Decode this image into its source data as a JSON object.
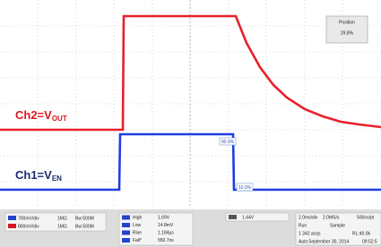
{
  "position_box": {
    "title": "Position",
    "value": "29.8%"
  },
  "traces": {
    "ch2": {
      "label": "Ch2=V",
      "subscript": "OUT"
    },
    "ch1": {
      "label": "Ch1=V",
      "subscript": "EN"
    }
  },
  "cursors": [
    "90.0%",
    "10.0%"
  ],
  "channels": [
    {
      "scale": "700mV/div",
      "impedance": "1MΩ",
      "bandwidth": "Bw:500M"
    },
    {
      "scale": "800mV/div",
      "impedance": "1MΩ",
      "bandwidth": "Bw:500M"
    }
  ],
  "measurements": [
    {
      "name": "High",
      "value": "1.69V"
    },
    {
      "name": "Low",
      "value": "14.8mV"
    },
    {
      "name": "Rise",
      "value": "1.184µs"
    },
    {
      "name": "Fall*",
      "value": "550.7ns"
    }
  ],
  "trigger": "1.44V",
  "acquisition": {
    "timebase": "2.0ms/div",
    "sample_rate": "2.0MS/s",
    "resolution": "500ns/pt",
    "state": "Run",
    "mode": "Sample",
    "acqs": "1 342 acqs",
    "record_length": "RL:40.0k",
    "trigger_mode": "Auto",
    "date": "September 30, 2014",
    "time": "09:52:5"
  }
}
